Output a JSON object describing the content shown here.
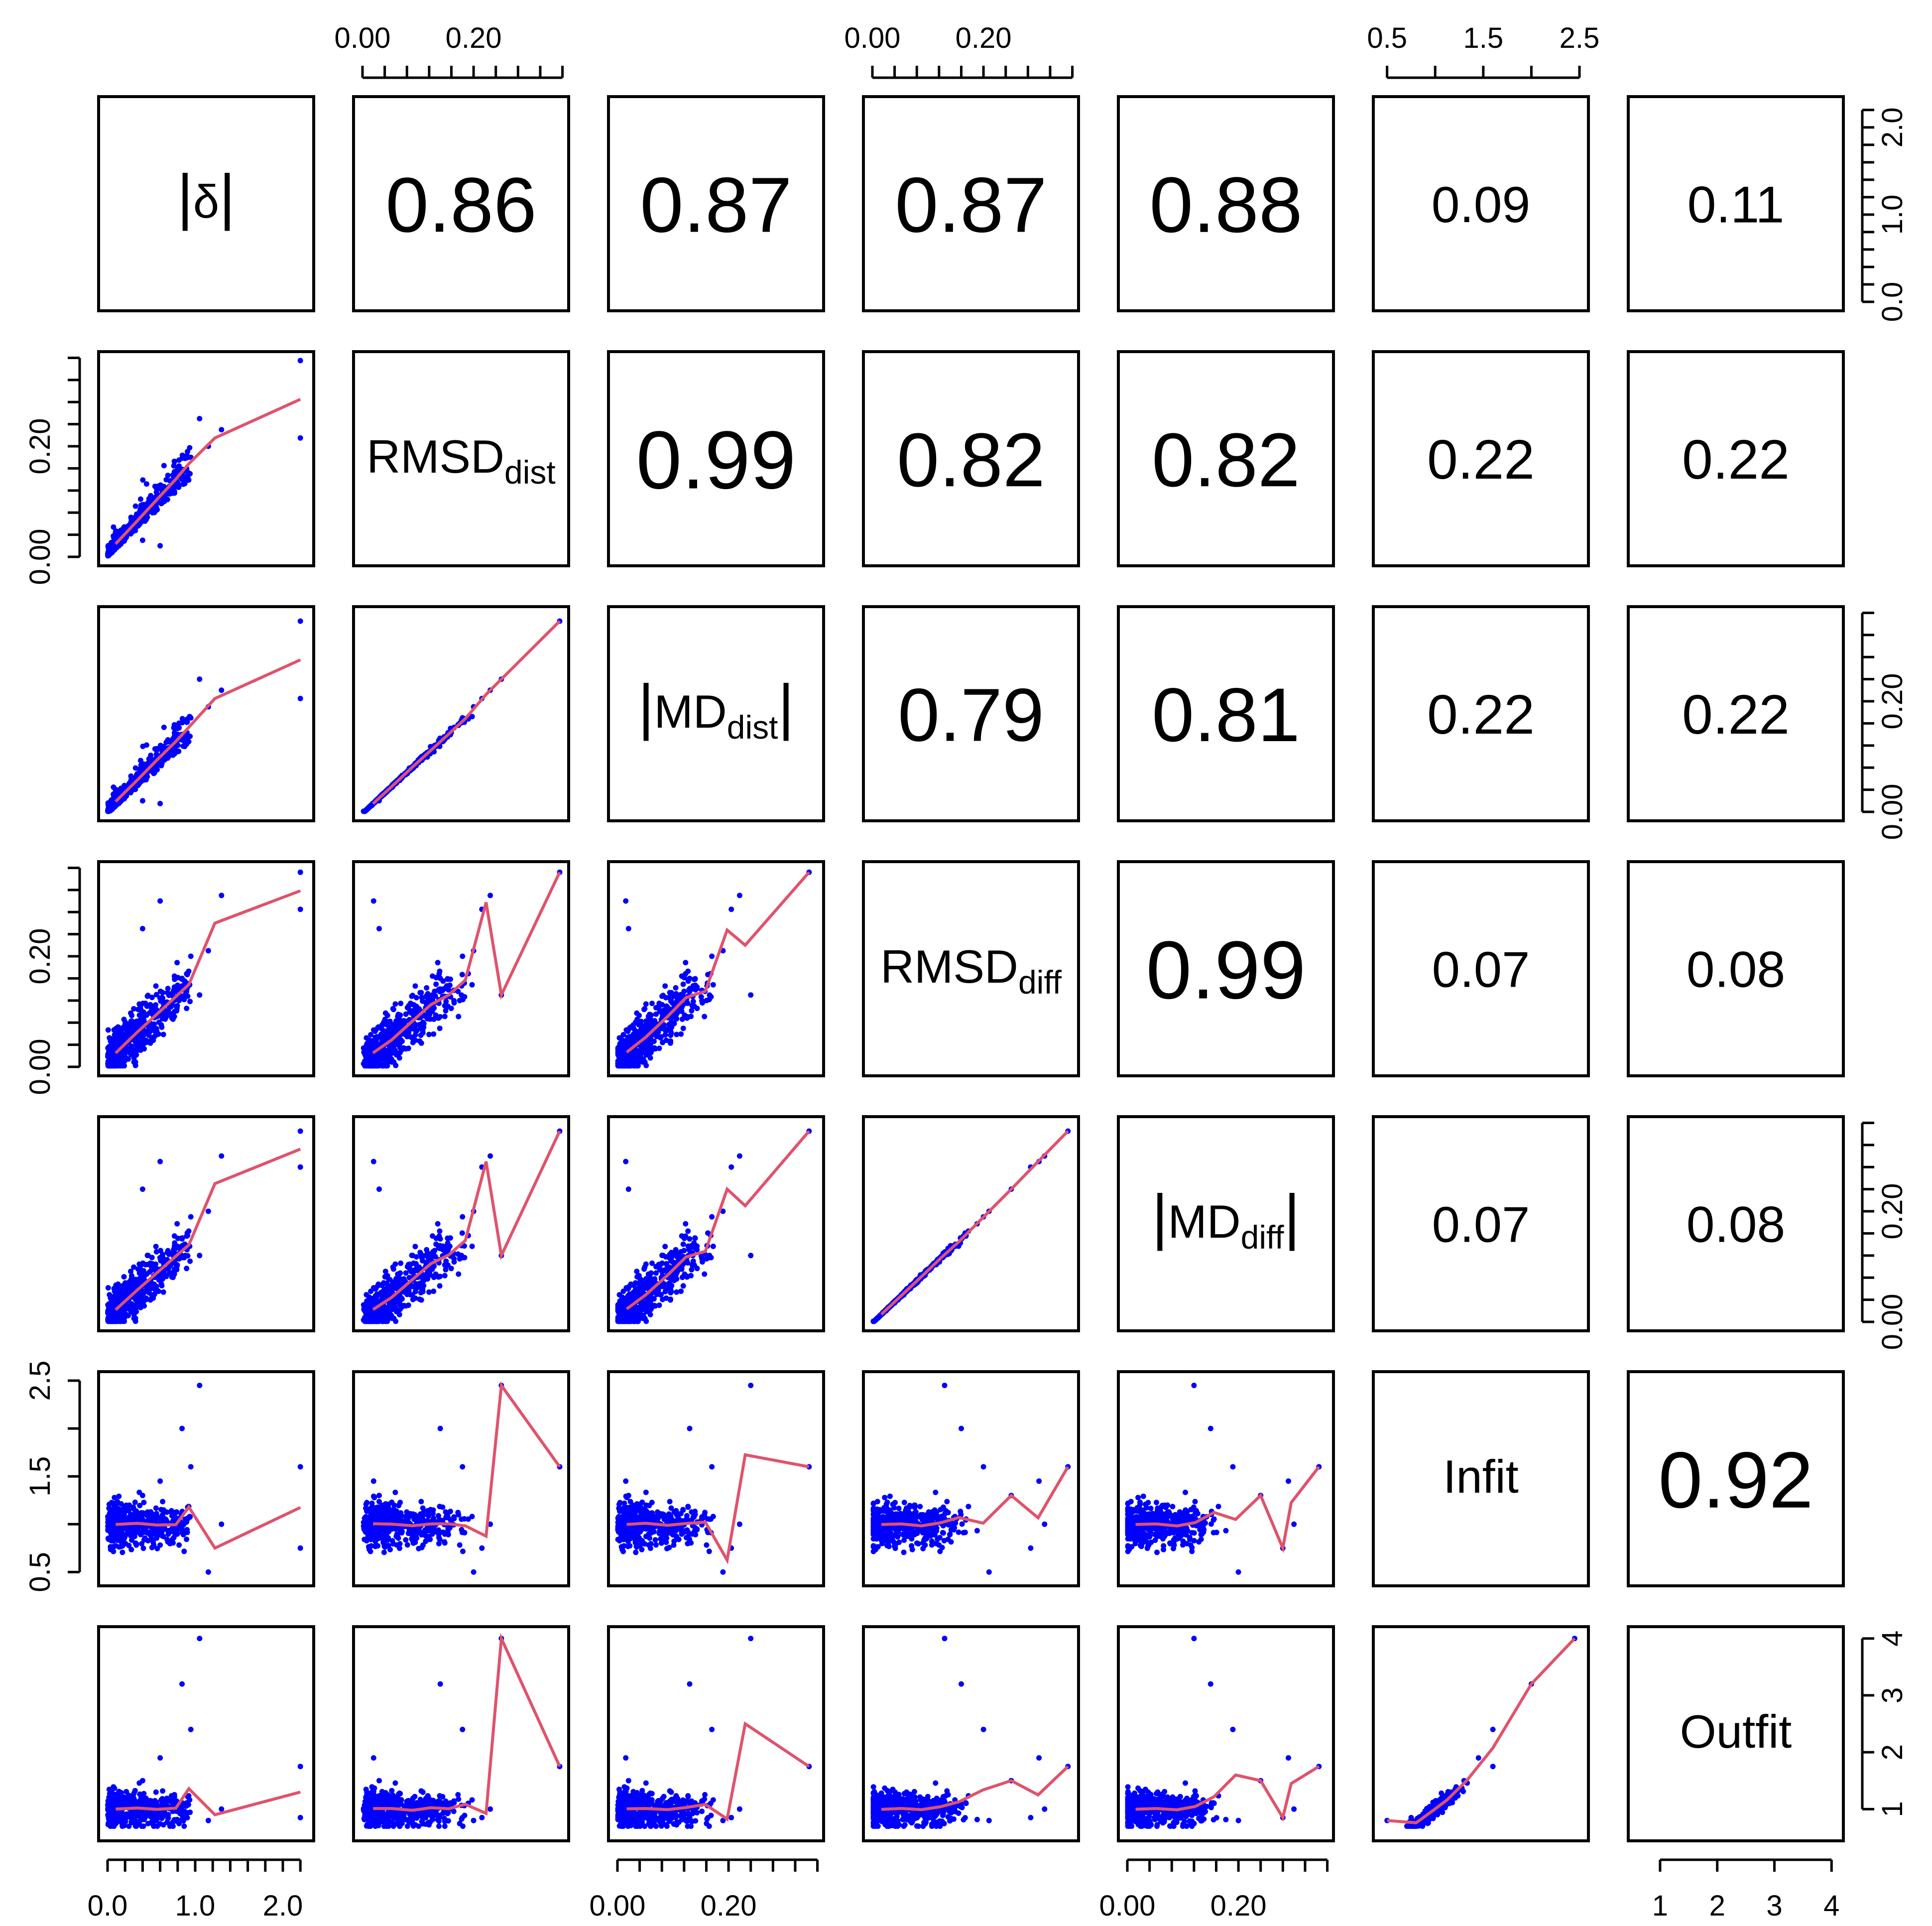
{
  "chart_data": {
    "type": "scatter",
    "subtype": "pairs-matrix",
    "point_color": "#0000FF",
    "line_color": "#DF536B",
    "variables": [
      {
        "key": "delta",
        "label": "|δ|",
        "base": "δ",
        "sub": "",
        "abs": true,
        "range": [
          0.0,
          2.25
        ],
        "ticks": [
          0.0,
          0.2,
          0.4,
          0.6,
          0.8,
          1.0,
          1.2,
          1.4,
          1.6,
          1.8,
          2.0,
          2.2
        ],
        "tick_labels": [
          "0.0",
          "1.0",
          "2.0"
        ]
      },
      {
        "key": "rmsd_dist",
        "label": "RMSD_dist",
        "base": "RMSD",
        "sub": "dist",
        "abs": false,
        "range": [
          0.0,
          0.355
        ],
        "ticks": [
          0.0,
          0.04,
          0.08,
          0.12,
          0.16,
          0.2,
          0.24,
          0.28,
          0.32,
          0.36
        ],
        "tick_labels": [
          "0.00",
          "0.20"
        ]
      },
      {
        "key": "md_dist",
        "label": "|MD_dist|",
        "base": "MD",
        "sub": "dist",
        "abs": true,
        "range": [
          0.0,
          0.355
        ],
        "ticks": [
          0.0,
          0.04,
          0.08,
          0.12,
          0.16,
          0.2,
          0.24,
          0.28,
          0.32,
          0.36
        ],
        "tick_labels": [
          "0.00",
          "0.20"
        ]
      },
      {
        "key": "rmsd_diff",
        "label": "RMSD_diff",
        "base": "RMSD",
        "sub": "diff",
        "abs": false,
        "range": [
          0.0,
          0.355
        ],
        "ticks": [
          0.0,
          0.04,
          0.08,
          0.12,
          0.16,
          0.2,
          0.24,
          0.28,
          0.32,
          0.36
        ],
        "tick_labels": [
          "0.00",
          "0.20"
        ]
      },
      {
        "key": "md_diff",
        "label": "|MD_diff|",
        "base": "MD",
        "sub": "diff",
        "abs": true,
        "range": [
          0.0,
          0.355
        ],
        "ticks": [
          0.0,
          0.04,
          0.08,
          0.12,
          0.16,
          0.2,
          0.24,
          0.28,
          0.32,
          0.36
        ],
        "tick_labels": [
          "0.00",
          "0.20"
        ]
      },
      {
        "key": "infit",
        "label": "Infit",
        "base": "Infit",
        "sub": "",
        "abs": false,
        "range": [
          0.45,
          2.5
        ],
        "ticks": [
          0.5,
          1.0,
          1.5,
          2.0,
          2.5
        ],
        "tick_labels": [
          "0.5",
          "1.5",
          "2.5"
        ]
      },
      {
        "key": "outfit",
        "label": "Outfit",
        "base": "Outfit",
        "sub": "",
        "abs": false,
        "range": [
          0.6,
          4.05
        ],
        "ticks": [
          1,
          2,
          3,
          4
        ],
        "tick_labels": [
          "1",
          "2",
          "3",
          "4"
        ]
      }
    ],
    "correlations": [
      {
        "row": 0,
        "col": 1,
        "value": "0.86"
      },
      {
        "row": 0,
        "col": 2,
        "value": "0.87"
      },
      {
        "row": 0,
        "col": 3,
        "value": "0.87"
      },
      {
        "row": 0,
        "col": 4,
        "value": "0.88"
      },
      {
        "row": 0,
        "col": 5,
        "value": "0.09"
      },
      {
        "row": 0,
        "col": 6,
        "value": "0.11"
      },
      {
        "row": 1,
        "col": 2,
        "value": "0.99"
      },
      {
        "row": 1,
        "col": 3,
        "value": "0.82"
      },
      {
        "row": 1,
        "col": 4,
        "value": "0.82"
      },
      {
        "row": 1,
        "col": 5,
        "value": "0.22"
      },
      {
        "row": 1,
        "col": 6,
        "value": "0.22"
      },
      {
        "row": 2,
        "col": 3,
        "value": "0.79"
      },
      {
        "row": 2,
        "col": 4,
        "value": "0.81"
      },
      {
        "row": 2,
        "col": 5,
        "value": "0.22"
      },
      {
        "row": 2,
        "col": 6,
        "value": "0.22"
      },
      {
        "row": 3,
        "col": 4,
        "value": "0.99"
      },
      {
        "row": 3,
        "col": 5,
        "value": "0.07"
      },
      {
        "row": 3,
        "col": 6,
        "value": "0.08"
      },
      {
        "row": 4,
        "col": 5,
        "value": "0.07"
      },
      {
        "row": 4,
        "col": 6,
        "value": "0.08"
      },
      {
        "row": 5,
        "col": 6,
        "value": "0.92"
      }
    ],
    "axes": {
      "top": [
        1,
        3,
        5
      ],
      "bottom": [
        0,
        2,
        4,
        6
      ],
      "left": [
        1,
        3,
        5
      ],
      "right": [
        0,
        2,
        4,
        6
      ]
    },
    "n_points": 480,
    "title": "",
    "xlabel": "",
    "ylabel": ""
  }
}
